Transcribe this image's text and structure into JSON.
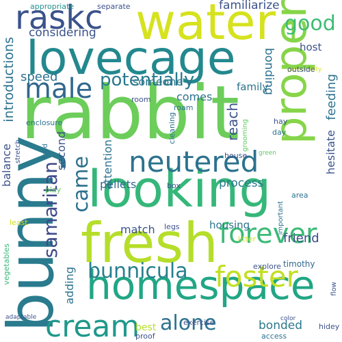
{
  "words": {
    "rabbit": "rabbit",
    "lovecage": "lovecage",
    "water": "water",
    "bunny": "bunny",
    "proper": "proper",
    "looking": "looking",
    "fresh": "fresh",
    "homespace": "homespace",
    "raskc": "raskc",
    "neutered": "neutered",
    "male": "male",
    "foster": "foster",
    "cream": "cream",
    "forever": "forever",
    "samaritan": "samaritan",
    "came": "came",
    "bunnicula": "bunnicula",
    "alone": "alone",
    "good": "good",
    "potentially": "potentially",
    "considering": "considering",
    "introductions": "introductions",
    "familiarize": "familiarize",
    "someone": "someone",
    "host": "host",
    "bonding": "bonding",
    "speed": "speed",
    "comes": "comes",
    "family": "family",
    "reach": "reach",
    "feeding": "feeding",
    "attention": "attention",
    "second": "second",
    "balance": "balance",
    "pellets": "pellets",
    "process": "process",
    "hesitate": "hesitate",
    "match": "match",
    "friend": "friend",
    "adding": "adding",
    "housing": "housing",
    "bonded": "bonded",
    "best": "best",
    "timothy": "timothy",
    "vegetables": "vegetables",
    "appropriate": "appropriate",
    "separate": "separate",
    "personality": "personality",
    "outside": "outside",
    "enclosure": "enclosure",
    "room": "room",
    "roam": "roam",
    "cleaning": "cleaning",
    "grooming": "grooming",
    "hay": "hay",
    "day": "day",
    "stretch": "stretch",
    "food": "food",
    "house": "house",
    "green": "green",
    "area": "area",
    "play": "play",
    "box": "box",
    "legs": "legs",
    "important": "important",
    "least": "least",
    "litter": "litter",
    "explore": "explore",
    "exercise": "exercise",
    "proof": "proof",
    "access": "access",
    "color": "color",
    "hidey": "hidey",
    "flow": "flow",
    "adaptable": "adaptable"
  },
  "colors": {
    "background": "#ffffff",
    "palette": [
      "#440154",
      "#3b528b",
      "#21918c",
      "#5ec962",
      "#fde725"
    ]
  }
}
